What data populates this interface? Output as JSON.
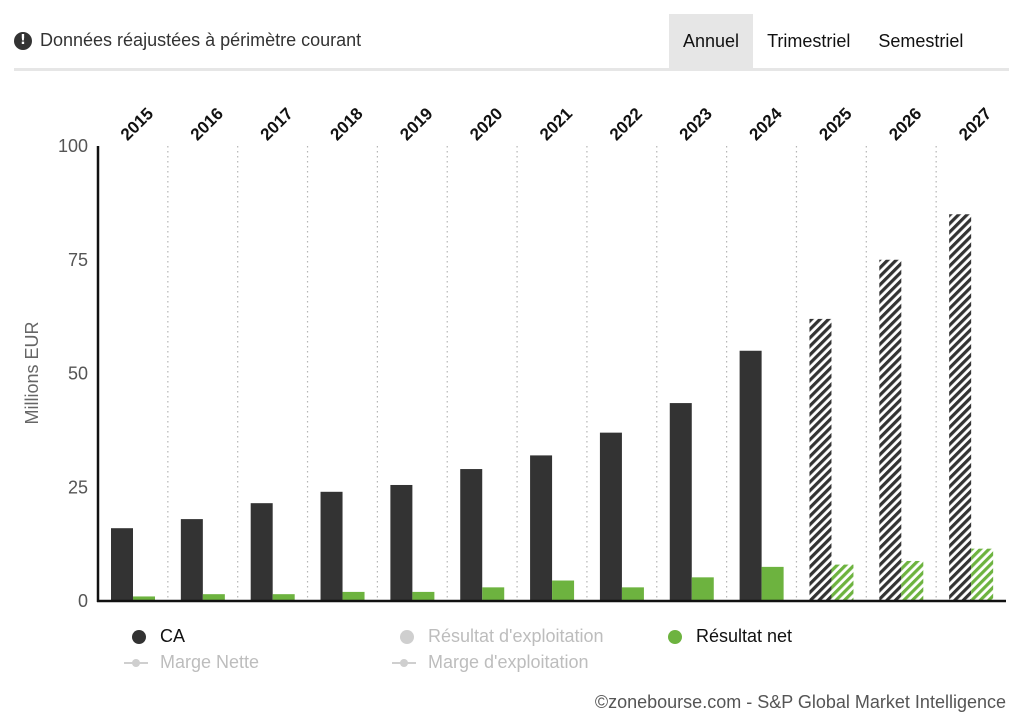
{
  "header": {
    "notice_text": "Données réajustées à périmètre courant",
    "info_icon": "info-icon",
    "tabs": [
      {
        "label": "Annuel",
        "active": true
      },
      {
        "label": "Trimestriel",
        "active": false
      },
      {
        "label": "Semestriel",
        "active": false
      }
    ]
  },
  "chart_data": {
    "type": "bar",
    "ylabel": "Millions EUR",
    "ylim": [
      0,
      100
    ],
    "yticks": [
      0,
      25,
      50,
      75,
      100
    ],
    "categories": [
      "2015",
      "2016",
      "2017",
      "2018",
      "2019",
      "2020",
      "2021",
      "2022",
      "2023",
      "2024",
      "2025",
      "2026",
      "2027"
    ],
    "forecast_from": "2025",
    "series": [
      {
        "name": "CA",
        "color": "#333333",
        "values": [
          16,
          18,
          21.5,
          24,
          25.5,
          29,
          32,
          37,
          43.5,
          55,
          62,
          75,
          85
        ]
      },
      {
        "name": "Résultat net",
        "color": "#6db33f",
        "values": [
          1,
          1.5,
          1.5,
          2,
          2,
          3,
          4.5,
          3,
          5.2,
          7.5,
          8,
          8.8,
          11.5
        ]
      }
    ]
  },
  "legend": {
    "ca": "CA",
    "resultat_exploitation": "Résultat d'exploitation",
    "resultat_net": "Résultat net",
    "marge_nette": "Marge Nette",
    "marge_exploitation": "Marge d'exploitation",
    "ca_color": "#333333",
    "resultat_net_color": "#6db33f",
    "inactive_color": "#cfcfcf"
  },
  "footer": {
    "source": "©zonebourse.com - S&P Global Market Intelligence"
  }
}
